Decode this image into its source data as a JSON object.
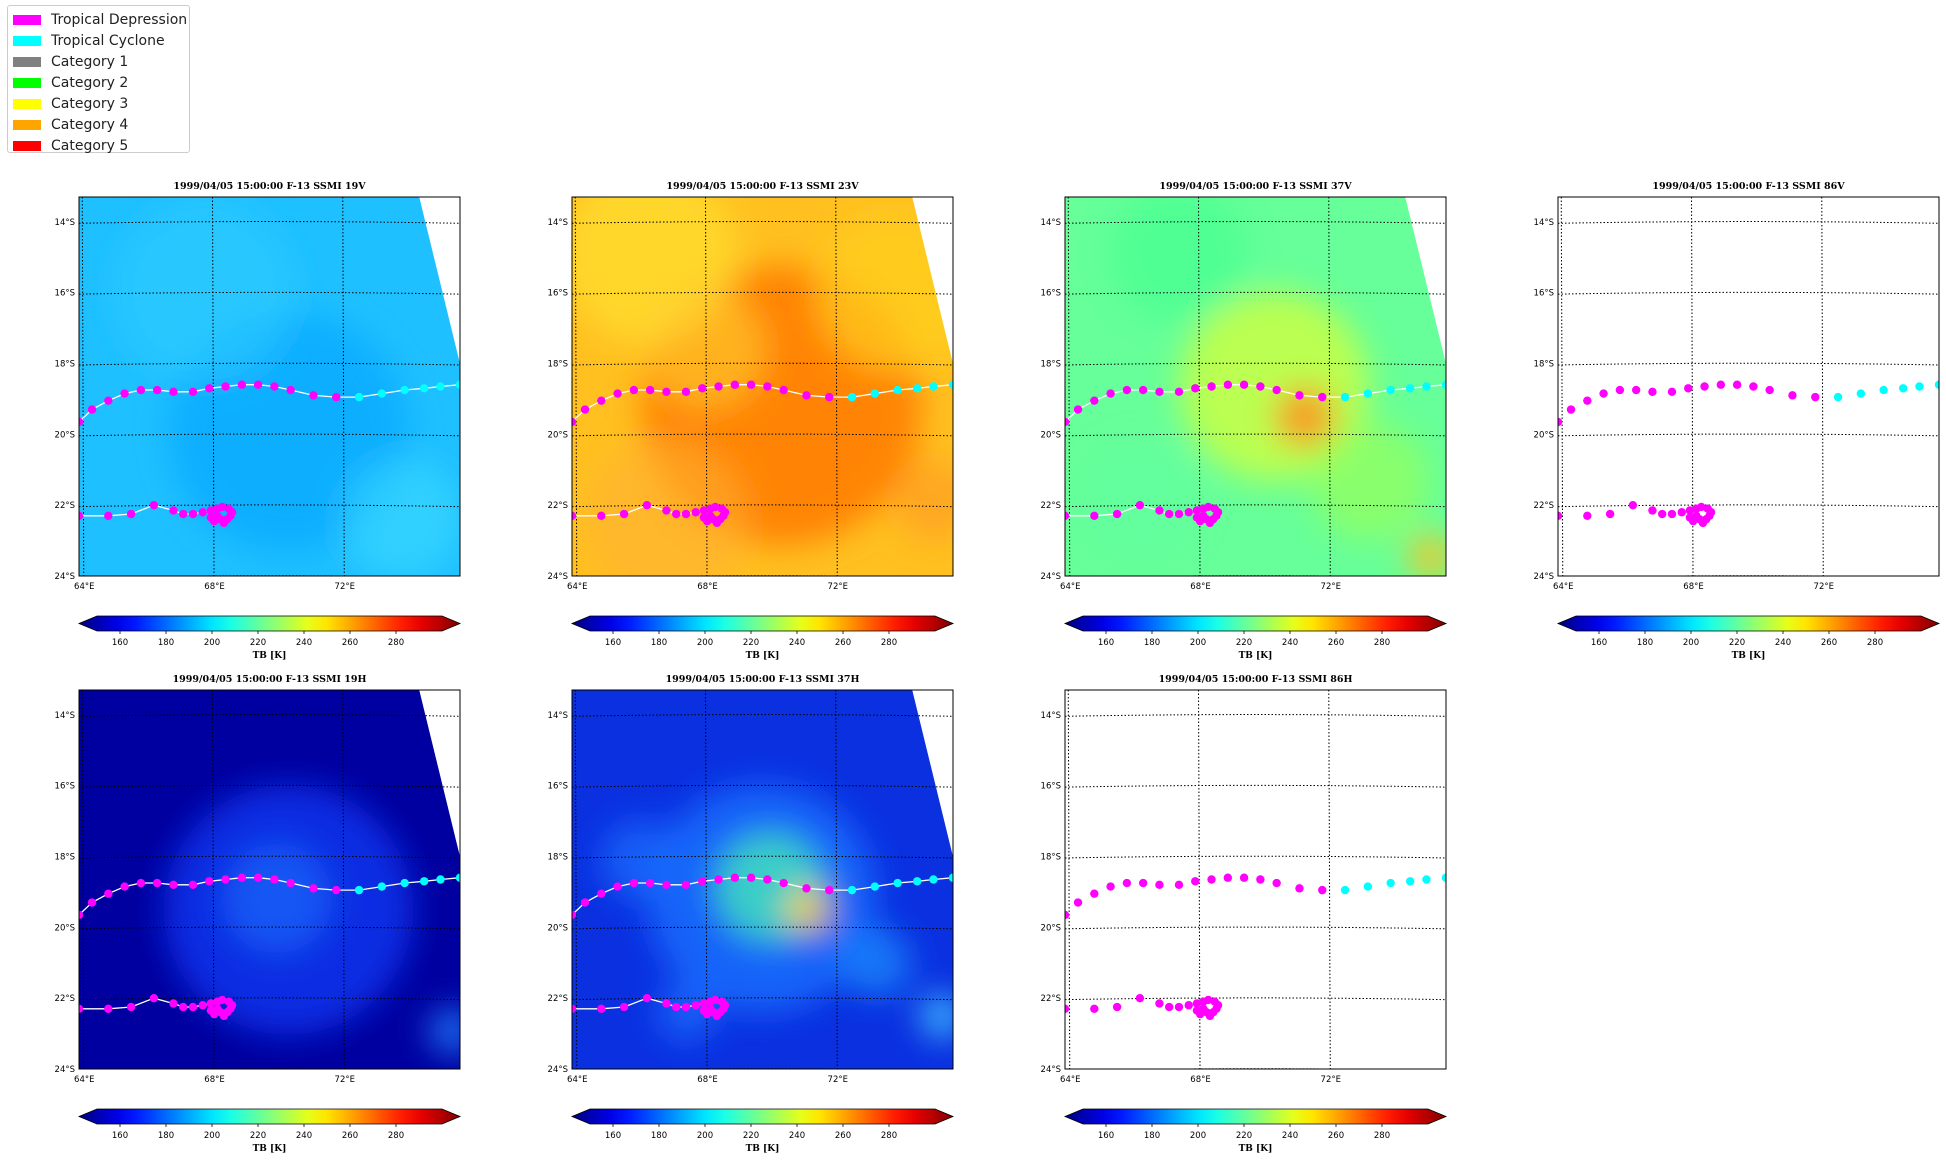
{
  "legend": {
    "items": [
      {
        "label": "Tropical Depression",
        "color": "#ff00ff"
      },
      {
        "label": "Tropical Cyclone",
        "color": "#00ffff"
      },
      {
        "label": "Category 1",
        "color": "#808080"
      },
      {
        "label": "Category 2",
        "color": "#00ff00"
      },
      {
        "label": "Category 3",
        "color": "#ffff00"
      },
      {
        "label": "Category 4",
        "color": "#ffa500"
      },
      {
        "label": "Category 5",
        "color": "#ff0000"
      }
    ]
  },
  "chart_data": {
    "type": "scatter",
    "lon_ticks": [
      "64°E",
      "68°E",
      "72°E"
    ],
    "lat_ticks": [
      "14°S",
      "16°S",
      "18°S",
      "20°S",
      "22°S",
      "24°S"
    ],
    "colorbar": {
      "label": "TB [K]",
      "ticks": [
        "160",
        "180",
        "200",
        "220",
        "240",
        "260",
        "280"
      ],
      "range": [
        150,
        300
      ],
      "colormap": "jet"
    },
    "panels": [
      {
        "title": "1999/04/05 15:00:00  F-13 SSMI 19V",
        "field": "19V",
        "base_color": "#1ec0ff",
        "data_present": true
      },
      {
        "title": "1999/04/05 15:00:00  F-13 SSMI 23V",
        "field": "23V",
        "base_color": "#ffc020",
        "data_present": true
      },
      {
        "title": "1999/04/05 15:00:00  F-13 SSMI 37V",
        "field": "37V",
        "base_color": "#66ff99",
        "data_present": true
      },
      {
        "title": "1999/04/05 15:00:00  F-13 SSMI 86V",
        "field": "86V",
        "base_color": "#ffffff",
        "data_present": false
      },
      {
        "title": "1999/04/05 15:00:00  F-13 SSMI 19H",
        "field": "19H",
        "base_color": "#0000a0",
        "data_present": true
      },
      {
        "title": "1999/04/05 15:00:00  F-13 SSMI 37H",
        "field": "37H",
        "base_color": "#0a30e0",
        "data_present": true
      },
      {
        "title": "1999/04/05 15:00:00  F-13 SSMI 86H",
        "field": "86H",
        "base_color": "#ffffff",
        "data_present": false
      }
    ],
    "track_upper": {
      "lon": [
        63.9,
        64.3,
        64.8,
        65.3,
        65.8,
        66.3,
        66.8,
        67.4,
        67.9,
        68.4,
        68.9,
        69.4,
        69.9,
        70.4,
        71.1,
        71.8,
        72.5,
        73.2,
        73.9,
        74.5,
        75.0,
        75.6
      ],
      "lat": [
        -19.65,
        -19.3,
        -19.05,
        -18.85,
        -18.75,
        -18.75,
        -18.8,
        -18.8,
        -18.7,
        -18.65,
        -18.6,
        -18.6,
        -18.65,
        -18.75,
        -18.9,
        -18.95,
        -18.95,
        -18.85,
        -18.75,
        -18.7,
        -18.65,
        -18.6
      ],
      "category": [
        "TD",
        "TD",
        "TD",
        "TD",
        "TD",
        "TD",
        "TD",
        "TD",
        "TD",
        "TD",
        "TD",
        "TD",
        "TD",
        "TD",
        "TD",
        "TD",
        "TC",
        "TC",
        "TC",
        "TC",
        "TC",
        "TC"
      ]
    },
    "track_lower": {
      "lon": [
        63.9,
        64.8,
        65.5,
        66.2,
        66.8,
        67.1,
        67.4,
        67.7,
        67.95,
        68.15,
        68.3,
        68.5,
        68.6,
        68.55,
        68.45,
        68.35,
        68.25,
        68.15,
        68.05,
        67.95
      ],
      "lat": [
        -22.3,
        -22.3,
        -22.25,
        -22.0,
        -22.15,
        -22.25,
        -22.25,
        -22.2,
        -22.15,
        -22.1,
        -22.05,
        -22.1,
        -22.2,
        -22.3,
        -22.4,
        -22.5,
        -22.4,
        -22.3,
        -22.45,
        -22.35
      ],
      "category": [
        "TD",
        "TD",
        "TD",
        "TD",
        "TD",
        "TD",
        "TD",
        "TD",
        "TD",
        "TD",
        "TD",
        "TD",
        "TD",
        "TD",
        "TD",
        "TD",
        "TD",
        "TD",
        "TD",
        "TD"
      ]
    }
  }
}
